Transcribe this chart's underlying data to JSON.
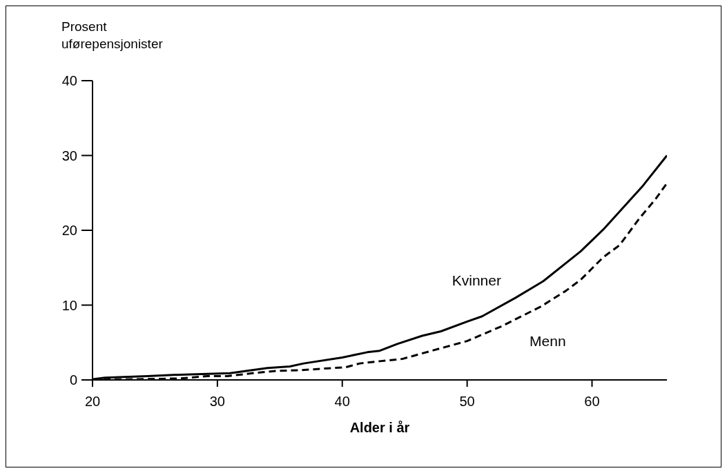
{
  "chart_data": {
    "type": "line",
    "xlabel": "Alder i år",
    "ylabel": "Prosent\nuførepensjonister",
    "xlim": [
      20,
      66
    ],
    "xticks": [
      20,
      30,
      40,
      50,
      60
    ],
    "ylim": [
      0,
      40
    ],
    "yticks": [
      0,
      10,
      20,
      30,
      40
    ],
    "grid": false,
    "legend": false,
    "marker": "none",
    "series": [
      {
        "name": "Kvinner",
        "color": "#000000",
        "line_style": "solid",
        "x": [
          20,
          21,
          24.4,
          27,
          29.2,
          31,
          34,
          35.8,
          36.9,
          40,
          42,
          43,
          44.4,
          46.4,
          47.9,
          50,
          51.2,
          53.9,
          56.1,
          59.1,
          60.9,
          64,
          66
        ],
        "values": [
          0.1,
          0.3,
          0.5,
          0.7,
          0.8,
          0.9,
          1.6,
          1.8,
          2.2,
          3.0,
          3.7,
          3.9,
          4.8,
          5.9,
          6.5,
          7.8,
          8.5,
          11.0,
          13.2,
          17.2,
          20.1,
          25.8,
          30
        ]
      },
      {
        "name": "Menn",
        "color": "#000000",
        "line_style": "dashed",
        "x": [
          20,
          23.7,
          27,
          29.2,
          30.8,
          32.8,
          34.7,
          36.6,
          40.3,
          41.4,
          43,
          44.8,
          47.6,
          50,
          52.8,
          55.9,
          57.9,
          59.1,
          60.9,
          62.2,
          63.8,
          65.1,
          66
        ],
        "values": [
          0,
          0.1,
          0.2,
          0.5,
          0.5,
          0.9,
          1.2,
          1.3,
          1.7,
          2.2,
          2.5,
          2.8,
          4.1,
          5.2,
          7.2,
          9.8,
          11.9,
          13.4,
          16.4,
          18.0,
          21.6,
          24.2,
          26.3
        ]
      }
    ]
  }
}
